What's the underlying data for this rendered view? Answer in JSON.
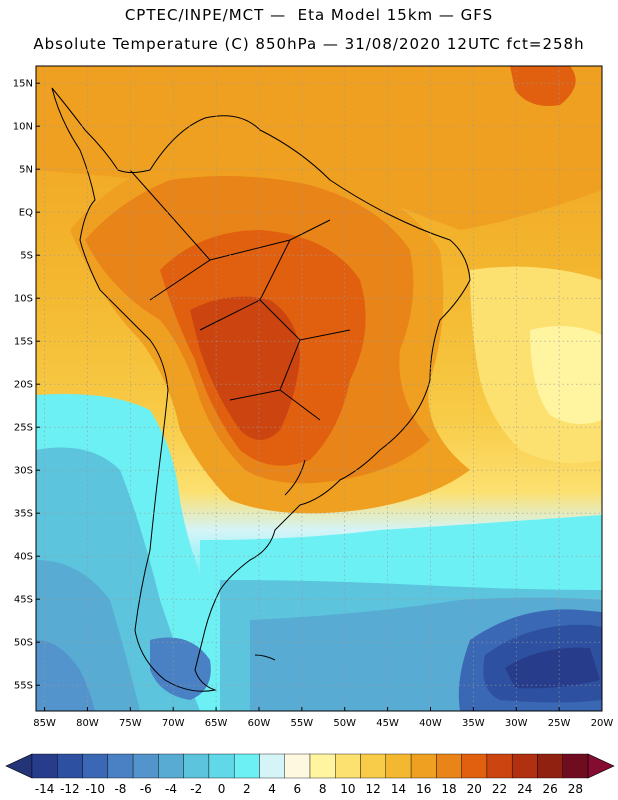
{
  "header": {
    "line1": "CPTEC/INPE/MCT —  Eta Model 15km — GFS",
    "line2": "Absolute Temperature (C) 850hPa — 31/08/2020 12UTC fct=258h"
  },
  "map": {
    "lat_labels": [
      "15N",
      "10N",
      "5N",
      "EQ",
      "5S",
      "10S",
      "15S",
      "20S",
      "25S",
      "30S",
      "35S",
      "40S",
      "45S",
      "50S",
      "55S"
    ],
    "lon_labels": [
      "85W",
      "80W",
      "75W",
      "70W",
      "65W",
      "60W",
      "55W",
      "50W",
      "45W",
      "40W",
      "35W",
      "30W",
      "25W",
      "20W"
    ],
    "lat_range": [
      -58,
      17
    ],
    "lon_range": [
      -86,
      -20
    ],
    "grid": "dotted"
  },
  "colorbar": {
    "labels": [
      "-14",
      "-12",
      "-10",
      "-8",
      "-6",
      "-4",
      "-2",
      "0",
      "2",
      "4",
      "6",
      "8",
      "10",
      "12",
      "14",
      "16",
      "18",
      "20",
      "22",
      "24",
      "26",
      "28"
    ],
    "colors": [
      "#283c8c",
      "#2e50a0",
      "#3a68b4",
      "#4a80c4",
      "#5494cc",
      "#58acd4",
      "#5cc4dc",
      "#60d8e8",
      "#6cf0f4",
      "#d4f4f8",
      "#fff8e0",
      "#fff4a0",
      "#fce070",
      "#f8cc48",
      "#f4b830",
      "#f0a020",
      "#e88418",
      "#e06010",
      "#cc4410",
      "#b03010",
      "#902010",
      "#700c20"
    ],
    "under_color": "#243478",
    "over_color": "#840c30"
  }
}
